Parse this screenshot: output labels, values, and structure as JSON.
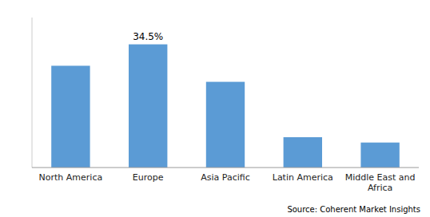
{
  "chart_data": {
    "type": "bar",
    "categories": [
      "North America",
      "Europe",
      "Asia Pacific",
      "Latin America",
      "Middle East and\nAfrica"
    ],
    "values": [
      28.5,
      34.5,
      24.0,
      8.5,
      7.0
    ],
    "color": "#5B9BD5",
    "ylim": [
      0,
      42
    ],
    "yticks": [],
    "grid": false,
    "tick_labels": "x",
    "annotations": [
      {
        "text": "34.5%",
        "x": "Europe",
        "y": 34.5
      }
    ],
    "source": "Source: Coherent Market Insights"
  }
}
